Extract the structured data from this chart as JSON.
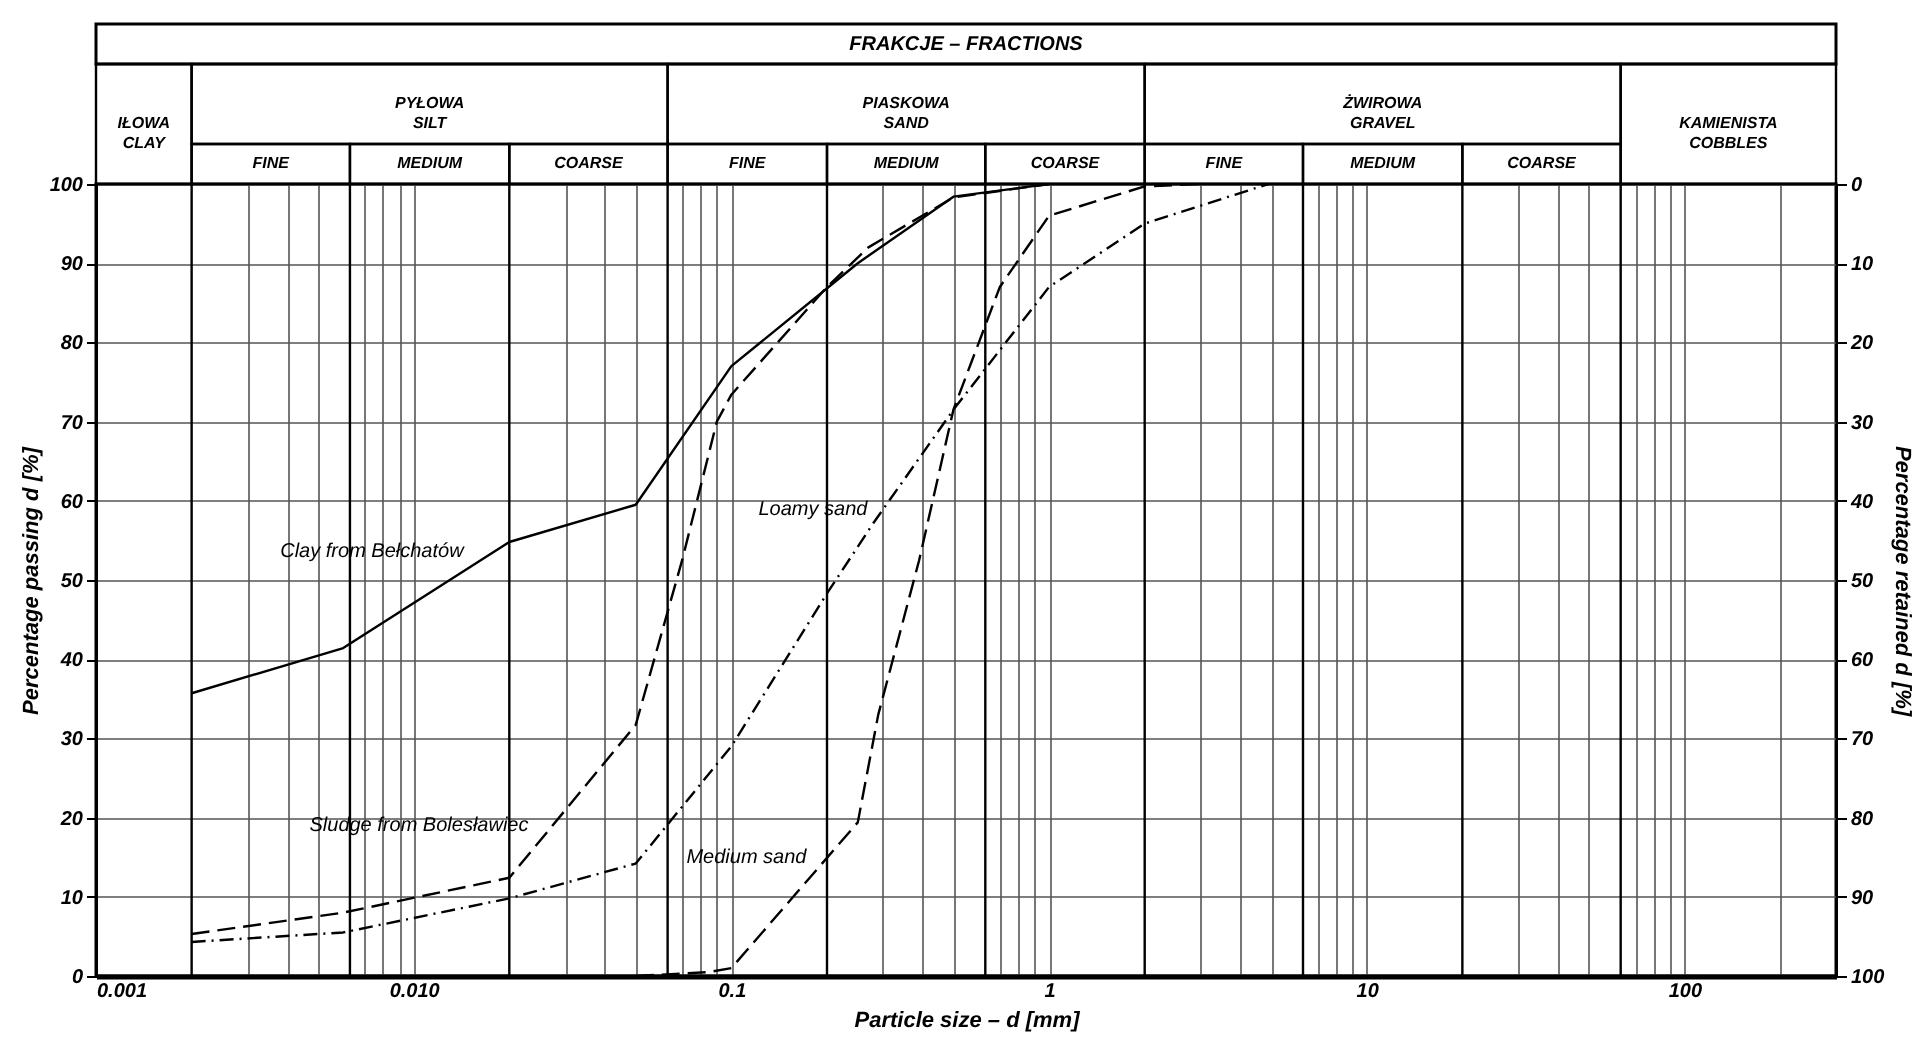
{
  "chart_data": {
    "type": "line",
    "title": "FRAKCJE – FRACTIONS",
    "xlabel": "Particle size – d [mm]",
    "ylabel": "Percentage passing d [%]",
    "y2label": "Percentage retained d [%]",
    "log": "x",
    "xlim": [
      0.001,
      300
    ],
    "ylim": [
      0,
      100
    ],
    "y2lim": [
      100,
      0
    ],
    "xticks": [
      0.001,
      {
        "value": 0.003,
        "label": null
      },
      {
        "value": 0.004,
        "label": null
      },
      {
        "value": 0.005,
        "label": null
      },
      {
        "value": 0.007,
        "label": null
      },
      {
        "value": 0.008,
        "label": null
      },
      {
        "value": 0.009,
        "label": null
      },
      {
        "value": 0.01,
        "label": "0.010"
      },
      {
        "value": 0.03,
        "label": null
      },
      {
        "value": 0.04,
        "label": null
      },
      {
        "value": 0.05,
        "label": null
      },
      {
        "value": 0.07,
        "label": null
      },
      {
        "value": 0.08,
        "label": null
      },
      {
        "value": 0.09,
        "label": null
      },
      0.1,
      {
        "value": 0.3,
        "label": null
      },
      {
        "value": 0.4,
        "label": null
      },
      {
        "value": 0.5,
        "label": null
      },
      {
        "value": 0.7,
        "label": null
      },
      {
        "value": 0.8,
        "label": null
      },
      {
        "value": 0.9,
        "label": null
      },
      1,
      {
        "value": 3,
        "label": null
      },
      {
        "value": 4,
        "label": null
      },
      {
        "value": 5,
        "label": null
      },
      {
        "value": 7,
        "label": null
      },
      {
        "value": 8,
        "label": null
      },
      {
        "value": 9,
        "label": null
      },
      10,
      {
        "value": 30,
        "label": null
      },
      {
        "value": 40,
        "label": null
      },
      {
        "value": 50,
        "label": null
      },
      {
        "value": 70,
        "label": null
      },
      {
        "value": 80,
        "label": null
      },
      {
        "value": 90,
        "label": null
      },
      100,
      {
        "value": 200,
        "label": null
      }
    ],
    "yticks": [
      0,
      10,
      20,
      30,
      40,
      50,
      60,
      70,
      80,
      90,
      100
    ],
    "y2ticks": [
      0,
      10,
      20,
      30,
      40,
      50,
      60,
      70,
      80,
      90,
      100
    ],
    "grid": true,
    "marker": "none",
    "series": [
      {
        "color": "#000000",
        "line_style": "solid",
        "x": [
          0.002,
          0.006,
          0.02,
          0.05,
          0.1,
          0.25,
          0.5,
          1
        ],
        "values": [
          35.7,
          41.4,
          54.8,
          59.5,
          77,
          90,
          98.4,
          100
        ]
      },
      {
        "color": "#000000",
        "line_style": "dashed",
        "x": [
          0.002,
          0.006,
          0.02,
          0.05,
          0.07,
          0.09,
          0.1,
          0.2,
          0.27,
          0.5,
          1
        ],
        "values": [
          5.3,
          8,
          12.4,
          31.7,
          52.5,
          70,
          73.4,
          87,
          92,
          98.3,
          100
        ]
      },
      {
        "color": "#000000",
        "line_style": "dotted",
        "x": [
          0.002,
          0.006,
          0.02,
          0.05,
          0.1,
          0.2,
          0.28,
          0.5,
          1,
          2,
          4.9
        ],
        "values": [
          4.3,
          5.5,
          9.8,
          14.2,
          29,
          48.3,
          57.2,
          71.5,
          87,
          95,
          100
        ]
      },
      {
        "color": "#000000",
        "line_style": "dashed",
        "x": [
          0.05,
          0.085,
          0.1,
          0.25,
          0.29,
          0.39,
          0.5,
          0.7,
          1,
          2,
          3
        ],
        "values": [
          0,
          0.5,
          1,
          19.4,
          33,
          52.5,
          71.5,
          87,
          96,
          99.7,
          100
        ]
      }
    ],
    "annotations": [
      {
        "text": "Clay from Bełchatów",
        "x": 0.015,
        "y": 51.6
      },
      {
        "text": "Sludge from Bolesławiec",
        "x": 0.024,
        "y": 17
      },
      {
        "text": "Loamy sand",
        "x": 0.28,
        "y": 57
      },
      {
        "text": "Medium sand",
        "x": 0.18,
        "y": 13
      },
      "IŁOWA\nCLAY",
      "PYŁOWA\nSILT",
      "PIASKOWA\nSAND",
      "ŻWIROWA\nGRAVEL",
      "KAMIENISTA\nCOBBLES",
      "FINE",
      "MEDIUM",
      "COARSE",
      "FINE",
      "MEDIUM",
      "COARSE",
      "FINE",
      "MEDIUM",
      "COARSE"
    ],
    "ref_lines": [
      {
        "axis": "x",
        "value": 0.002
      },
      {
        "axis": "x",
        "value": 0.0063
      },
      {
        "axis": "x",
        "value": 0.02
      },
      {
        "axis": "x",
        "value": 0.063
      },
      {
        "axis": "x",
        "value": 0.2
      },
      {
        "axis": "x",
        "value": 0.63
      },
      {
        "axis": "x",
        "value": 2
      },
      {
        "axis": "x",
        "value": 6.3
      },
      {
        "axis": "x",
        "value": 20
      },
      {
        "axis": "x",
        "value": 63
      }
    ]
  }
}
